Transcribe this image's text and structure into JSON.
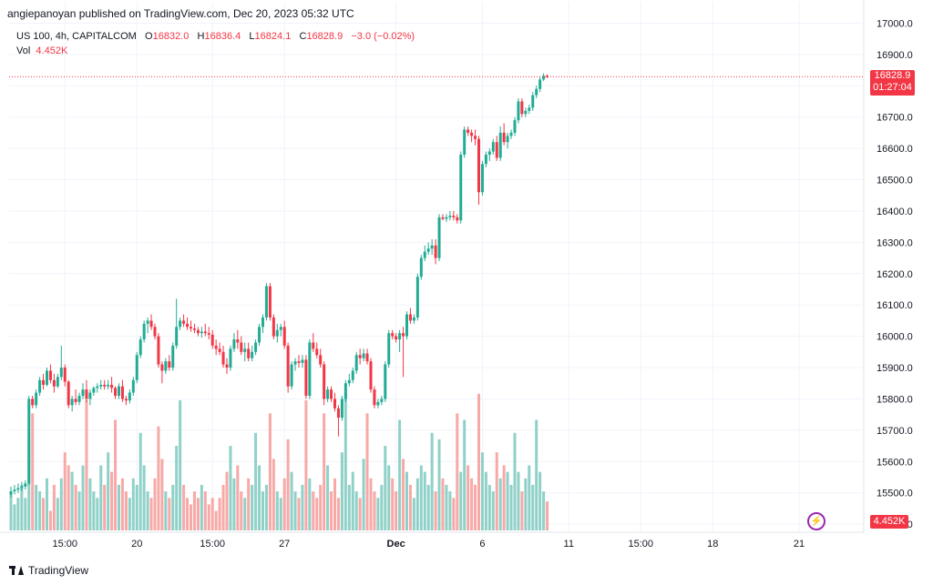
{
  "header": {
    "published": "angiepanoyan published on TradingView.com, Dec 20, 2023 05:32 UTC",
    "symbol": "US 100, 4h, CAPITALCOM",
    "o_label": "O",
    "o_value": "16832.0",
    "h_label": "H",
    "h_value": "16836.4",
    "l_label": "L",
    "l_value": "16824.1",
    "c_label": "C",
    "c_value": "16828.9",
    "change": "−3.0 (−0.02%)",
    "vol_label": "Vol",
    "vol_value": "4.452K"
  },
  "badges": {
    "price": "16828.9",
    "countdown": "01:27:04",
    "volume": "4.452K"
  },
  "footer": {
    "brand": "TradingView"
  },
  "colors": {
    "up": "#22ab94",
    "down": "#f23645",
    "vol_up": "#8fd1c8",
    "vol_down": "#f7a9a7"
  },
  "chart_data": {
    "type": "candlestick",
    "y_ticks": [
      "17000.0",
      "16900.0",
      "16800.0",
      "16700.0",
      "16600.0",
      "16500.0",
      "16400.0",
      "16300.0",
      "16200.0",
      "16100.0",
      "16000.0",
      "15900.0",
      "15800.0",
      "15700.0",
      "15600.0",
      "15500.0",
      "15400.0"
    ],
    "ylim": [
      15380,
      17010
    ],
    "x_labels": [
      {
        "label": "15:00",
        "index": 15
      },
      {
        "label": "20",
        "index": 35
      },
      {
        "label": "15:00",
        "index": 56
      },
      {
        "label": "27",
        "index": 76
      },
      {
        "label": "Dec",
        "index": 107
      },
      {
        "label": "6",
        "index": 131
      },
      {
        "label": "11",
        "index": 155
      },
      {
        "label": "15:00",
        "index": 175
      },
      {
        "label": "18",
        "index": 195
      },
      {
        "label": "21",
        "index": 219
      }
    ],
    "last_price": 16828.9,
    "volume_max": 20,
    "candles": [
      {
        "o": 15495,
        "h": 15520,
        "l": 15485,
        "c": 15505,
        "v": 6
      },
      {
        "o": 15505,
        "h": 15525,
        "l": 15495,
        "c": 15510,
        "v": 4
      },
      {
        "o": 15510,
        "h": 15530,
        "l": 15500,
        "c": 15515,
        "v": 5
      },
      {
        "o": 15515,
        "h": 15535,
        "l": 15505,
        "c": 15520,
        "v": 7
      },
      {
        "o": 15520,
        "h": 15540,
        "l": 15510,
        "c": 15530,
        "v": 5
      },
      {
        "o": 15530,
        "h": 15810,
        "l": 15525,
        "c": 15800,
        "v": 14
      },
      {
        "o": 15800,
        "h": 15810,
        "l": 15770,
        "c": 15780,
        "v": 18
      },
      {
        "o": 15780,
        "h": 15830,
        "l": 15770,
        "c": 15820,
        "v": 7
      },
      {
        "o": 15820,
        "h": 15870,
        "l": 15810,
        "c": 15860,
        "v": 6
      },
      {
        "o": 15860,
        "h": 15880,
        "l": 15830,
        "c": 15845,
        "v": 5
      },
      {
        "o": 15845,
        "h": 15900,
        "l": 15840,
        "c": 15890,
        "v": 8
      },
      {
        "o": 15890,
        "h": 15910,
        "l": 15850,
        "c": 15860,
        "v": 3
      },
      {
        "o": 15860,
        "h": 15880,
        "l": 15820,
        "c": 15840,
        "v": 7
      },
      {
        "o": 15840,
        "h": 15880,
        "l": 15835,
        "c": 15870,
        "v": 5
      },
      {
        "o": 15870,
        "h": 15970,
        "l": 15860,
        "c": 15900,
        "v": 8
      },
      {
        "o": 15900,
        "h": 15910,
        "l": 15840,
        "c": 15855,
        "v": 12
      },
      {
        "o": 15855,
        "h": 15860,
        "l": 15770,
        "c": 15780,
        "v": 10
      },
      {
        "o": 15780,
        "h": 15810,
        "l": 15760,
        "c": 15800,
        "v": 9
      },
      {
        "o": 15800,
        "h": 15830,
        "l": 15780,
        "c": 15790,
        "v": 7
      },
      {
        "o": 15790,
        "h": 15820,
        "l": 15780,
        "c": 15810,
        "v": 6
      },
      {
        "o": 15810,
        "h": 15850,
        "l": 15800,
        "c": 15830,
        "v": 10
      },
      {
        "o": 15830,
        "h": 15860,
        "l": 15790,
        "c": 15800,
        "v": 20
      },
      {
        "o": 15800,
        "h": 15830,
        "l": 15780,
        "c": 15820,
        "v": 8
      },
      {
        "o": 15820,
        "h": 15840,
        "l": 15810,
        "c": 15835,
        "v": 6
      },
      {
        "o": 15835,
        "h": 15850,
        "l": 15820,
        "c": 15840,
        "v": 5
      },
      {
        "o": 15840,
        "h": 15860,
        "l": 15830,
        "c": 15845,
        "v": 10
      },
      {
        "o": 15845,
        "h": 15860,
        "l": 15830,
        "c": 15840,
        "v": 7
      },
      {
        "o": 15840,
        "h": 15860,
        "l": 15830,
        "c": 15845,
        "v": 12
      },
      {
        "o": 15845,
        "h": 15870,
        "l": 15820,
        "c": 15835,
        "v": 9
      },
      {
        "o": 15835,
        "h": 15840,
        "l": 15800,
        "c": 15810,
        "v": 17
      },
      {
        "o": 15810,
        "h": 15850,
        "l": 15800,
        "c": 15840,
        "v": 7
      },
      {
        "o": 15840,
        "h": 15860,
        "l": 15790,
        "c": 15800,
        "v": 8
      },
      {
        "o": 15800,
        "h": 15810,
        "l": 15780,
        "c": 15795,
        "v": 6
      },
      {
        "o": 15795,
        "h": 15830,
        "l": 15785,
        "c": 15820,
        "v": 5
      },
      {
        "o": 15820,
        "h": 15870,
        "l": 15810,
        "c": 15860,
        "v": 8
      },
      {
        "o": 15860,
        "h": 15950,
        "l": 15850,
        "c": 15940,
        "v": 7
      },
      {
        "o": 15940,
        "h": 16000,
        "l": 15930,
        "c": 15990,
        "v": 15
      },
      {
        "o": 15990,
        "h": 16050,
        "l": 15980,
        "c": 16040,
        "v": 10
      },
      {
        "o": 16040,
        "h": 16060,
        "l": 16010,
        "c": 16050,
        "v": 6
      },
      {
        "o": 16050,
        "h": 16070,
        "l": 16020,
        "c": 16030,
        "v": 5
      },
      {
        "o": 16030,
        "h": 16040,
        "l": 15990,
        "c": 16000,
        "v": 8
      },
      {
        "o": 16000,
        "h": 16010,
        "l": 15900,
        "c": 15910,
        "v": 16
      },
      {
        "o": 15910,
        "h": 15920,
        "l": 15850,
        "c": 15890,
        "v": 11
      },
      {
        "o": 15890,
        "h": 15930,
        "l": 15880,
        "c": 15920,
        "v": 6
      },
      {
        "o": 15920,
        "h": 15940,
        "l": 15890,
        "c": 15900,
        "v": 5
      },
      {
        "o": 15900,
        "h": 15980,
        "l": 15890,
        "c": 15970,
        "v": 7
      },
      {
        "o": 15970,
        "h": 16120,
        "l": 15960,
        "c": 16030,
        "v": 13
      },
      {
        "o": 16030,
        "h": 16060,
        "l": 16020,
        "c": 16050,
        "v": 20
      },
      {
        "o": 16050,
        "h": 16070,
        "l": 16030,
        "c": 16040,
        "v": 7
      },
      {
        "o": 16040,
        "h": 16060,
        "l": 16020,
        "c": 16030,
        "v": 5
      },
      {
        "o": 16030,
        "h": 16050,
        "l": 16015,
        "c": 16025,
        "v": 4
      },
      {
        "o": 16025,
        "h": 16040,
        "l": 16010,
        "c": 16020,
        "v": 6
      },
      {
        "o": 16020,
        "h": 16030,
        "l": 16000,
        "c": 16010,
        "v": 5
      },
      {
        "o": 16010,
        "h": 16030,
        "l": 15995,
        "c": 16015,
        "v": 7
      },
      {
        "o": 16015,
        "h": 16040,
        "l": 16000,
        "c": 16010,
        "v": 6
      },
      {
        "o": 16010,
        "h": 16030,
        "l": 15990,
        "c": 16005,
        "v": 4
      },
      {
        "o": 16005,
        "h": 16020,
        "l": 15960,
        "c": 15970,
        "v": 5
      },
      {
        "o": 15970,
        "h": 15990,
        "l": 15940,
        "c": 15960,
        "v": 3
      },
      {
        "o": 15960,
        "h": 15980,
        "l": 15940,
        "c": 15950,
        "v": 5
      },
      {
        "o": 15950,
        "h": 15970,
        "l": 15900,
        "c": 15910,
        "v": 7
      },
      {
        "o": 15910,
        "h": 15930,
        "l": 15880,
        "c": 15900,
        "v": 9
      },
      {
        "o": 15900,
        "h": 15970,
        "l": 15890,
        "c": 15960,
        "v": 13
      },
      {
        "o": 15960,
        "h": 16010,
        "l": 15950,
        "c": 15990,
        "v": 8
      },
      {
        "o": 15990,
        "h": 16020,
        "l": 15960,
        "c": 15980,
        "v": 10
      },
      {
        "o": 15980,
        "h": 16000,
        "l": 15940,
        "c": 15950,
        "v": 6
      },
      {
        "o": 15950,
        "h": 15980,
        "l": 15920,
        "c": 15960,
        "v": 5
      },
      {
        "o": 15960,
        "h": 15980,
        "l": 15920,
        "c": 15930,
        "v": 8
      },
      {
        "o": 15930,
        "h": 15970,
        "l": 15920,
        "c": 15950,
        "v": 7
      },
      {
        "o": 15950,
        "h": 15990,
        "l": 15940,
        "c": 15980,
        "v": 15
      },
      {
        "o": 15980,
        "h": 16040,
        "l": 15970,
        "c": 16030,
        "v": 10
      },
      {
        "o": 16030,
        "h": 16070,
        "l": 16010,
        "c": 16060,
        "v": 6
      },
      {
        "o": 16060,
        "h": 16170,
        "l": 16050,
        "c": 16160,
        "v": 7
      },
      {
        "o": 16160,
        "h": 16170,
        "l": 16050,
        "c": 16060,
        "v": 18
      },
      {
        "o": 16060,
        "h": 16070,
        "l": 15990,
        "c": 16000,
        "v": 11
      },
      {
        "o": 16000,
        "h": 16040,
        "l": 15980,
        "c": 16020,
        "v": 6
      },
      {
        "o": 16020,
        "h": 16040,
        "l": 16000,
        "c": 16030,
        "v": 5
      },
      {
        "o": 16030,
        "h": 16050,
        "l": 15960,
        "c": 15970,
        "v": 8
      },
      {
        "o": 15970,
        "h": 15980,
        "l": 15820,
        "c": 15840,
        "v": 14
      },
      {
        "o": 15840,
        "h": 15920,
        "l": 15830,
        "c": 15910,
        "v": 9
      },
      {
        "o": 15910,
        "h": 15930,
        "l": 15890,
        "c": 15920,
        "v": 6
      },
      {
        "o": 15920,
        "h": 15940,
        "l": 15900,
        "c": 15915,
        "v": 5
      },
      {
        "o": 15915,
        "h": 15940,
        "l": 15900,
        "c": 15925,
        "v": 7
      },
      {
        "o": 15925,
        "h": 15940,
        "l": 15800,
        "c": 15810,
        "v": 20
      },
      {
        "o": 15810,
        "h": 15990,
        "l": 15800,
        "c": 15980,
        "v": 8
      },
      {
        "o": 15980,
        "h": 16010,
        "l": 15950,
        "c": 15960,
        "v": 6
      },
      {
        "o": 15960,
        "h": 15980,
        "l": 15930,
        "c": 15940,
        "v": 5
      },
      {
        "o": 15940,
        "h": 15960,
        "l": 15900,
        "c": 15910,
        "v": 7
      },
      {
        "o": 15910,
        "h": 15920,
        "l": 15780,
        "c": 15800,
        "v": 18
      },
      {
        "o": 15800,
        "h": 15840,
        "l": 15790,
        "c": 15830,
        "v": 10
      },
      {
        "o": 15830,
        "h": 15840,
        "l": 15790,
        "c": 15800,
        "v": 6
      },
      {
        "o": 15800,
        "h": 15820,
        "l": 15760,
        "c": 15770,
        "v": 8
      },
      {
        "o": 15770,
        "h": 15780,
        "l": 15680,
        "c": 15740,
        "v": 5
      },
      {
        "o": 15740,
        "h": 15810,
        "l": 15730,
        "c": 15800,
        "v": 12
      },
      {
        "o": 15800,
        "h": 15860,
        "l": 15790,
        "c": 15850,
        "v": 21
      },
      {
        "o": 15850,
        "h": 15880,
        "l": 15840,
        "c": 15860,
        "v": 7
      },
      {
        "o": 15860,
        "h": 15900,
        "l": 15850,
        "c": 15890,
        "v": 9
      },
      {
        "o": 15890,
        "h": 15950,
        "l": 15880,
        "c": 15940,
        "v": 6
      },
      {
        "o": 15940,
        "h": 15960,
        "l": 15910,
        "c": 15930,
        "v": 5
      },
      {
        "o": 15930,
        "h": 15960,
        "l": 15920,
        "c": 15945,
        "v": 11
      },
      {
        "o": 15945,
        "h": 15960,
        "l": 15910,
        "c": 15920,
        "v": 18
      },
      {
        "o": 15920,
        "h": 15930,
        "l": 15820,
        "c": 15830,
        "v": 8
      },
      {
        "o": 15830,
        "h": 15840,
        "l": 15770,
        "c": 15780,
        "v": 6
      },
      {
        "o": 15780,
        "h": 15800,
        "l": 15770,
        "c": 15790,
        "v": 5
      },
      {
        "o": 15790,
        "h": 15810,
        "l": 15780,
        "c": 15800,
        "v": 7
      },
      {
        "o": 15800,
        "h": 15920,
        "l": 15790,
        "c": 15910,
        "v": 13
      },
      {
        "o": 15910,
        "h": 16020,
        "l": 15900,
        "c": 16010,
        "v": 10
      },
      {
        "o": 16010,
        "h": 16020,
        "l": 15990,
        "c": 16000,
        "v": 8
      },
      {
        "o": 16000,
        "h": 16010,
        "l": 15980,
        "c": 15990,
        "v": 6
      },
      {
        "o": 15990,
        "h": 16020,
        "l": 15950,
        "c": 16010,
        "v": 17
      },
      {
        "o": 16010,
        "h": 16030,
        "l": 15870,
        "c": 16000,
        "v": 11
      },
      {
        "o": 16000,
        "h": 16080,
        "l": 15990,
        "c": 16070,
        "v": 9
      },
      {
        "o": 16070,
        "h": 16090,
        "l": 16040,
        "c": 16050,
        "v": 7
      },
      {
        "o": 16050,
        "h": 16070,
        "l": 16040,
        "c": 16060,
        "v": 5
      },
      {
        "o": 16060,
        "h": 16200,
        "l": 16050,
        "c": 16190,
        "v": 8
      },
      {
        "o": 16190,
        "h": 16260,
        "l": 16180,
        "c": 16250,
        "v": 10
      },
      {
        "o": 16250,
        "h": 16290,
        "l": 16240,
        "c": 16270,
        "v": 9
      },
      {
        "o": 16270,
        "h": 16300,
        "l": 16260,
        "c": 16280,
        "v": 7
      },
      {
        "o": 16280,
        "h": 16310,
        "l": 16260,
        "c": 16290,
        "v": 15
      },
      {
        "o": 16290,
        "h": 16310,
        "l": 16230,
        "c": 16250,
        "v": 6
      },
      {
        "o": 16250,
        "h": 16390,
        "l": 16240,
        "c": 16380,
        "v": 14
      },
      {
        "o": 16380,
        "h": 16390,
        "l": 16370,
        "c": 16375,
        "v": 8
      },
      {
        "o": 16375,
        "h": 16390,
        "l": 16365,
        "c": 16380,
        "v": 7
      },
      {
        "o": 16380,
        "h": 16400,
        "l": 16370,
        "c": 16385,
        "v": 6
      },
      {
        "o": 16385,
        "h": 16400,
        "l": 16370,
        "c": 16380,
        "v": 5
      },
      {
        "o": 16380,
        "h": 16390,
        "l": 16360,
        "c": 16370,
        "v": 18
      },
      {
        "o": 16370,
        "h": 16590,
        "l": 16360,
        "c": 16580,
        "v": 9
      },
      {
        "o": 16580,
        "h": 16670,
        "l": 16570,
        "c": 16660,
        "v": 17
      },
      {
        "o": 16660,
        "h": 16670,
        "l": 16640,
        "c": 16650,
        "v": 10
      },
      {
        "o": 16650,
        "h": 16660,
        "l": 16620,
        "c": 16640,
        "v": 8
      },
      {
        "o": 16640,
        "h": 16660,
        "l": 16610,
        "c": 16630,
        "v": 7
      },
      {
        "o": 16630,
        "h": 16640,
        "l": 16420,
        "c": 16460,
        "v": 21
      },
      {
        "o": 16460,
        "h": 16560,
        "l": 16450,
        "c": 16550,
        "v": 12
      },
      {
        "o": 16550,
        "h": 16590,
        "l": 16540,
        "c": 16580,
        "v": 9
      },
      {
        "o": 16580,
        "h": 16600,
        "l": 16560,
        "c": 16590,
        "v": 7
      },
      {
        "o": 16590,
        "h": 16630,
        "l": 16580,
        "c": 16620,
        "v": 6
      },
      {
        "o": 16620,
        "h": 16640,
        "l": 16560,
        "c": 16570,
        "v": 12
      },
      {
        "o": 16570,
        "h": 16670,
        "l": 16560,
        "c": 16650,
        "v": 8
      },
      {
        "o": 16650,
        "h": 16680,
        "l": 16610,
        "c": 16620,
        "v": 10
      },
      {
        "o": 16620,
        "h": 16650,
        "l": 16600,
        "c": 16640,
        "v": 9
      },
      {
        "o": 16640,
        "h": 16660,
        "l": 16630,
        "c": 16650,
        "v": 7
      },
      {
        "o": 16650,
        "h": 16700,
        "l": 16640,
        "c": 16690,
        "v": 15
      },
      {
        "o": 16690,
        "h": 16760,
        "l": 16680,
        "c": 16750,
        "v": 9
      },
      {
        "o": 16750,
        "h": 16760,
        "l": 16700,
        "c": 16710,
        "v": 6
      },
      {
        "o": 16710,
        "h": 16730,
        "l": 16700,
        "c": 16720,
        "v": 8
      },
      {
        "o": 16720,
        "h": 16740,
        "l": 16710,
        "c": 16730,
        "v": 10
      },
      {
        "o": 16730,
        "h": 16780,
        "l": 16720,
        "c": 16770,
        "v": 7
      },
      {
        "o": 16770,
        "h": 16800,
        "l": 16760,
        "c": 16790,
        "v": 17
      },
      {
        "o": 16790,
        "h": 16830,
        "l": 16780,
        "c": 16820,
        "v": 9
      },
      {
        "o": 16820,
        "h": 16840,
        "l": 16815,
        "c": 16832,
        "v": 6
      },
      {
        "o": 16832.0,
        "h": 16836.4,
        "l": 16824.1,
        "c": 16828.9,
        "v": 4.452
      }
    ]
  }
}
